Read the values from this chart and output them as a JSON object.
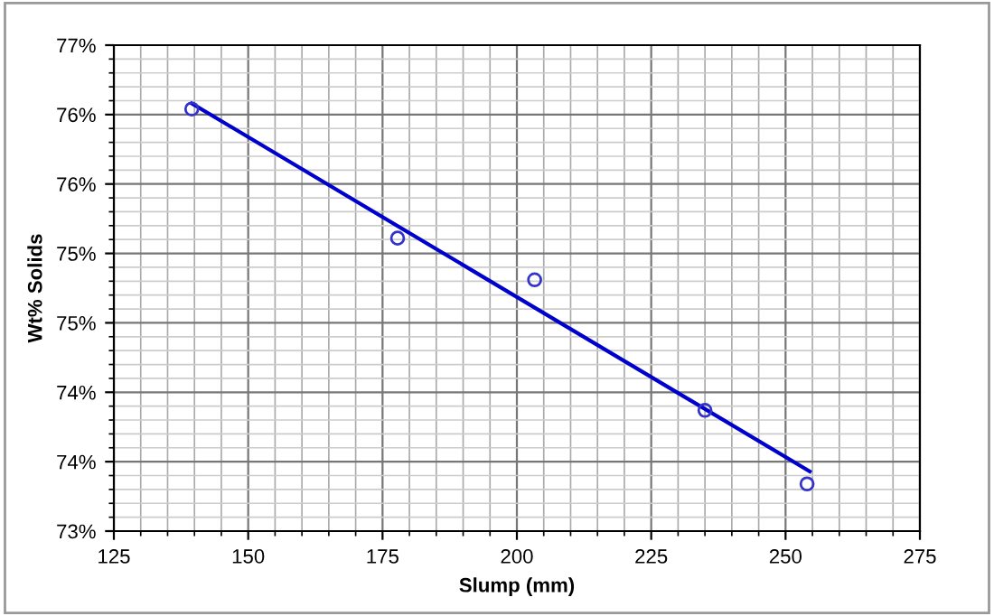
{
  "chart_data": {
    "type": "scatter",
    "xlabel": "Slump (mm)",
    "ylabel": "Wt% Solids",
    "xlim": [
      125,
      275
    ],
    "xticks": [
      125,
      150,
      175,
      200,
      225,
      250,
      275
    ],
    "ylim": [
      73.5,
      77
    ],
    "yticks": [
      {
        "value": 73.5,
        "label": "73%"
      },
      {
        "value": 74,
        "label": "74%"
      },
      {
        "value": 74.5,
        "label": "74%"
      },
      {
        "value": 75,
        "label": "75%"
      },
      {
        "value": 75.5,
        "label": "75%"
      },
      {
        "value": 76,
        "label": "76%"
      },
      {
        "value": 76.5,
        "label": "76%"
      },
      {
        "value": 77,
        "label": "77%"
      }
    ],
    "grid": true,
    "series": [
      {
        "marker": "circle",
        "color": "#3333cc",
        "x": [
          139.5,
          177.8,
          203.3,
          235,
          254
        ],
        "values": [
          76.54,
          75.61,
          75.31,
          74.37,
          73.84
        ]
      },
      {
        "type": "line",
        "marker": "none",
        "color": "#0000cc",
        "x": [
          139.5,
          254.5
        ],
        "values": [
          76.58,
          73.93
        ]
      }
    ]
  }
}
